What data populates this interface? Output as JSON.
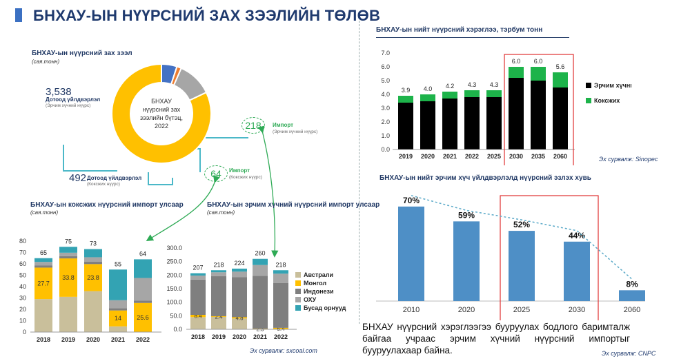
{
  "page": {
    "title": "БНХАУ-ЫН НҮҮРСНИЙ ЗАХ ЗЭЭЛИЙН ТӨЛӨВ",
    "source_left": "Эх сурвалж: sxcoal.com",
    "source_sinopec": "Эх сурвалж: Sinopec",
    "source_cnpc": "Эх сурвалж: CNPC",
    "note": "БНХАУ нүүрсний хэрэглээгээ бууруулах бодлого баримталж байгаа учраас эрчим хүчний нүүрсний импортыг бууруулахаар байна."
  },
  "market": {
    "heading": "БНХАУ-ын нүүрсний зах зээл",
    "unit": "(сая.тонн)",
    "center_label": "БНХАУ нүүрсний зах зээлийн бүтэц, 2022",
    "domestic_energy_value": "3,538",
    "domestic_energy_label": "Дотоод үйлдвэрлэл",
    "domestic_energy_sub": "(Эрчим хүчний нүүрс)",
    "domestic_coking_value": "492",
    "domestic_coking_label": "Дотоод үйлдвэрлэл",
    "domestic_coking_sub": "(Коксжих нүүрс)",
    "import_energy_value": "218",
    "import_energy_label": "Импорт",
    "import_energy_sub": "(Эрчим хүчний нүүрс)",
    "import_coking_value": "64",
    "import_coking_label": "Импорт",
    "import_coking_sub": "(Коксжих нүүрс)"
  },
  "colors": {
    "australia": "#c9bf9b",
    "mongolia": "#ffc000",
    "indonesia": "#7f7f7f",
    "russia": "#a6a6a6",
    "other": "#33a3b3",
    "black": "#000000",
    "green": "#1db34a",
    "blue": "#4e8fc6",
    "red": "#e03030",
    "donut_yellow": "#ffc000",
    "donut_gray": "#a6a6a6",
    "donut_blue": "#4472c4",
    "donut_orange": "#ed7d31"
  },
  "chart_data": [
    {
      "id": "donut",
      "type": "pie",
      "title": "БНХАУ нүүрсний зах зээлийн бүтэц, 2022",
      "categories": [
        "Дотоод үйлдвэрлэл (Эрчим хүчний нүүрс)",
        "Дотоод үйлдвэрлэл (Коксжих нүүрс)",
        "Импорт (Эрчим хүчний нүүрс)",
        "Импорт (Коксжих нүүрс)"
      ],
      "values": [
        3538,
        492,
        218,
        64
      ]
    },
    {
      "id": "coking_import",
      "type": "bar",
      "stacked": true,
      "title": "БНХАУ-ын коксжих нүүрсний импорт улсаар",
      "unit": "(сая.тонн)",
      "categories": [
        "2018",
        "2019",
        "2020",
        "2021",
        "2022"
      ],
      "ylim": [
        0,
        80
      ],
      "yticks": [
        "0",
        "10",
        "20",
        "30",
        "40",
        "50",
        "60",
        "70",
        "80"
      ],
      "totals": [
        "65",
        "75",
        "73",
        "55",
        "64"
      ],
      "series": [
        {
          "name": "Австрали",
          "values": [
            29,
            31,
            36,
            5,
            0
          ],
          "labels": [
            "",
            "",
            "",
            "",
            ""
          ]
        },
        {
          "name": "Монгол",
          "values": [
            27.7,
            33.8,
            23.8,
            14,
            25.6
          ],
          "labels": [
            "27.7",
            "33.8",
            "23.8",
            "14",
            "25.6"
          ]
        },
        {
          "name": "Индонези",
          "values": [
            2,
            2,
            2,
            2,
            2
          ],
          "labels": [
            "",
            "",
            "",
            "",
            ""
          ]
        },
        {
          "name": "ОХУ",
          "values": [
            3,
            3,
            4,
            7,
            20
          ],
          "labels": [
            "",
            "",
            "",
            "",
            ""
          ]
        },
        {
          "name": "Бусад орнууд",
          "values": [
            3.3,
            5.2,
            7.2,
            27,
            16.4
          ],
          "labels": [
            "",
            "",
            "",
            "",
            ""
          ]
        }
      ]
    },
    {
      "id": "energy_import",
      "type": "bar",
      "stacked": true,
      "title": "БНХАУ-ын эрчим хүчний нүүрсний импорт улсаар",
      "unit": "(сая.тонн)",
      "categories": [
        "2018",
        "2019",
        "2020",
        "2021",
        "2022"
      ],
      "ylim": [
        0,
        300
      ],
      "yticks": [
        "0.0",
        "50.0",
        "100.0",
        "150.0",
        "200.0",
        "250.0",
        "300.0"
      ],
      "totals": [
        "207",
        "218",
        "224",
        "260",
        "218"
      ],
      "series": [
        {
          "name": "Австрали",
          "values": [
            45,
            46,
            40,
            0,
            0
          ],
          "labels": [
            "",
            "",
            "",
            "",
            ""
          ]
        },
        {
          "name": "Монгол",
          "values": [
            8.4,
            2.4,
            4.8,
            2.3,
            5.4
          ],
          "labels": [
            "8.4",
            "2.4",
            "4.8",
            "2.3",
            "5.4"
          ]
        },
        {
          "name": "Индонези",
          "values": [
            130,
            148,
            148,
            195,
            165
          ],
          "labels": [
            "",
            "",
            "",
            "",
            ""
          ]
        },
        {
          "name": "ОХУ",
          "values": [
            15,
            14,
            20,
            40,
            35
          ],
          "labels": [
            "",
            "",
            "",
            "",
            ""
          ]
        },
        {
          "name": "Бусад орнууд",
          "values": [
            8.6,
            7.6,
            11.2,
            22.7,
            12.6
          ],
          "labels": [
            "",
            "",
            "",
            "",
            ""
          ]
        }
      ],
      "legend": [
        "Австрали",
        "Монгол",
        "Индонези",
        "ОХУ",
        "Бусад орнууд"
      ]
    },
    {
      "id": "consumption",
      "type": "bar",
      "stacked": true,
      "title": "БНХАУ-ын нийт нүүрсний хэрэглээ, тэрбум тонн",
      "categories": [
        "2019",
        "2020",
        "2021",
        "2022",
        "2025",
        "2030",
        "2035",
        "2060"
      ],
      "ylim": [
        0,
        7
      ],
      "yticks": [
        "0.0",
        "1.0",
        "2.0",
        "3.0",
        "4.0",
        "5.0",
        "6.0",
        "7.0"
      ],
      "totals": [
        "3.9",
        "4.0",
        "4.2",
        "4.3",
        "4.3",
        "6.0",
        "6.0",
        "5.6"
      ],
      "series": [
        {
          "name": "Эрчим хүчний",
          "values": [
            3.4,
            3.5,
            3.7,
            3.8,
            3.8,
            5.2,
            5.0,
            4.5
          ]
        },
        {
          "name": "Коксжих",
          "values": [
            0.5,
            0.5,
            0.5,
            0.5,
            0.5,
            0.8,
            1.0,
            1.1
          ]
        }
      ],
      "legend": [
        "Эрчим хүчний",
        "Коксжих"
      ]
    },
    {
      "id": "share",
      "type": "bar",
      "title": "БНХАУ-ын нийт эрчим хүч үйлдвэрлэлд нүүрсний эзлэх хувь",
      "categories": [
        "2010",
        "2020",
        "2025",
        "2030",
        "2060"
      ],
      "values": [
        70,
        59,
        52,
        44,
        8
      ],
      "labels": [
        "70%",
        "59%",
        "52%",
        "44%",
        "8%"
      ],
      "ylim": [
        0,
        75
      ]
    }
  ]
}
